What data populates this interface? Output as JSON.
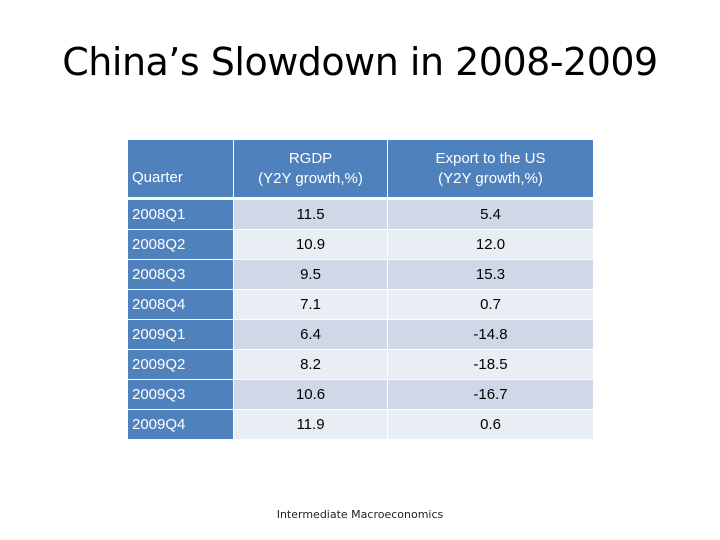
{
  "slide": {
    "title": "China’s Slowdown in 2008-2009",
    "footer": "Intermediate Macroeconomics"
  },
  "table": {
    "headers": [
      {
        "line1": "Quarter",
        "line2": ""
      },
      {
        "line1": "RGDP",
        "line2": "(Y2Y growth,%)"
      },
      {
        "line1": "Export to the US",
        "line2": "(Y2Y growth,%)"
      }
    ],
    "rows": [
      {
        "quarter": "2008Q1",
        "rgdp": "11.5",
        "export_us": "5.4"
      },
      {
        "quarter": "2008Q2",
        "rgdp": "10.9",
        "export_us": "12.0"
      },
      {
        "quarter": "2008Q3",
        "rgdp": "9.5",
        "export_us": "15.3"
      },
      {
        "quarter": "2008Q4",
        "rgdp": "7.1",
        "export_us": "0.7"
      },
      {
        "quarter": "2009Q1",
        "rgdp": "6.4",
        "export_us": "-14.8"
      },
      {
        "quarter": "2009Q2",
        "rgdp": "8.2",
        "export_us": "-18.5"
      },
      {
        "quarter": "2009Q3",
        "rgdp": "10.6",
        "export_us": "-16.7"
      },
      {
        "quarter": "2009Q4",
        "rgdp": "11.9",
        "export_us": "0.6"
      }
    ]
  },
  "colors": {
    "header_bg": "#4f81bd",
    "row_band_dark": "#d0d8e8",
    "row_band_light": "#e9edf4"
  }
}
